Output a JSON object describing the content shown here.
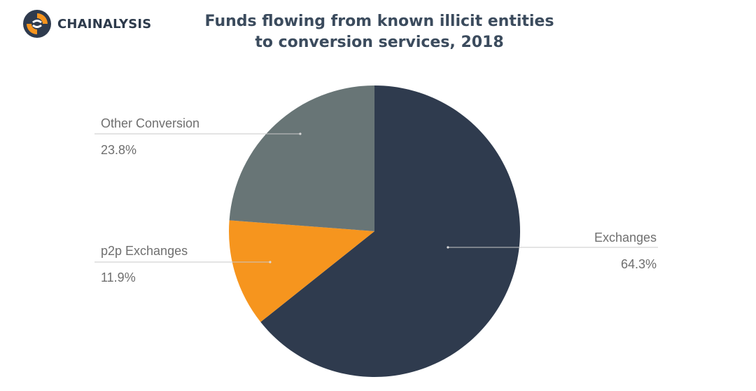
{
  "brand": {
    "name": "CHAINALYSIS",
    "logo_icon": "chainalysis-logo-icon",
    "logo_colors": [
      "#f7941d",
      "#2f3b4e"
    ]
  },
  "chart_data": {
    "type": "pie",
    "title": "Funds flowing from known illicit entities to conversion services, 2018",
    "title_lines": [
      "Funds flowing from known illicit entities",
      "to conversion services, 2018"
    ],
    "slices": [
      {
        "label": "Exchanges",
        "value": 64.3,
        "value_label": "64.3%",
        "color": "#2f3b4e"
      },
      {
        "label": "p2p Exchanges",
        "value": 11.9,
        "value_label": "11.9%",
        "color": "#f6951e"
      },
      {
        "label": "Other Conversion",
        "value": 23.8,
        "value_label": "23.8%",
        "color": "#687576"
      }
    ],
    "start_angle_deg": 0,
    "direction": "clockwise",
    "legend": "none",
    "labels": "outside-with-leader-lines"
  }
}
